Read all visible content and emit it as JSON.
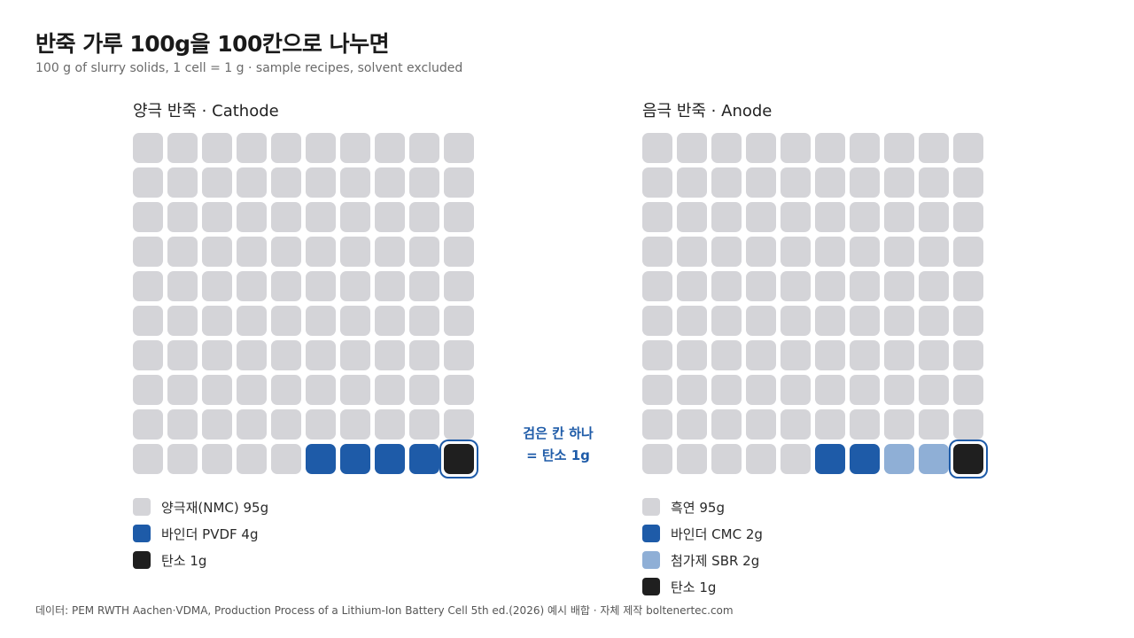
{
  "title": "반죽 가루 100g을 100칸으로 나누면",
  "subtitle": "100 g of slurry solids, 1 cell = 1 g · sample recipes, solvent excluded",
  "callout": {
    "line1": "검은 칸 하나",
    "line2": "= 탄소 1g"
  },
  "source": "데이터: PEM RWTH Aachen·VDMA, Production Process of a Lithium-Ion Battery Cell 5th ed.(2026) 예시 배합 · 자체 제작 boltenertec.com",
  "colors": {
    "gray": "#d4d4d8",
    "blue": "#1e5ba8",
    "lightblue": "#8fafd6",
    "black": "#1f1f1f",
    "highlight": "#1e5ba8"
  },
  "chart_data": [
    {
      "type": "waffle",
      "title": "양극 반죽 · Cathode",
      "grid": [
        10,
        10
      ],
      "series": [
        {
          "name": "양극재(NMC) 95g",
          "value": 95,
          "color": "#d4d4d8"
        },
        {
          "name": "바인더 PVDF 4g",
          "value": 4,
          "color": "#1e5ba8"
        },
        {
          "name": "탄소 1g",
          "value": 1,
          "color": "#1f1f1f",
          "highlighted": true
        }
      ]
    },
    {
      "type": "waffle",
      "title": "음극 반죽 · Anode",
      "grid": [
        10,
        10
      ],
      "series": [
        {
          "name": "흑연 95g",
          "value": 95,
          "color": "#d4d4d8"
        },
        {
          "name": "바인더 CMC 2g",
          "value": 2,
          "color": "#1e5ba8"
        },
        {
          "name": "첨가제 SBR 2g",
          "value": 2,
          "color": "#8fafd6"
        },
        {
          "name": "탄소 1g",
          "value": 1,
          "color": "#1f1f1f",
          "highlighted": true
        }
      ]
    }
  ]
}
